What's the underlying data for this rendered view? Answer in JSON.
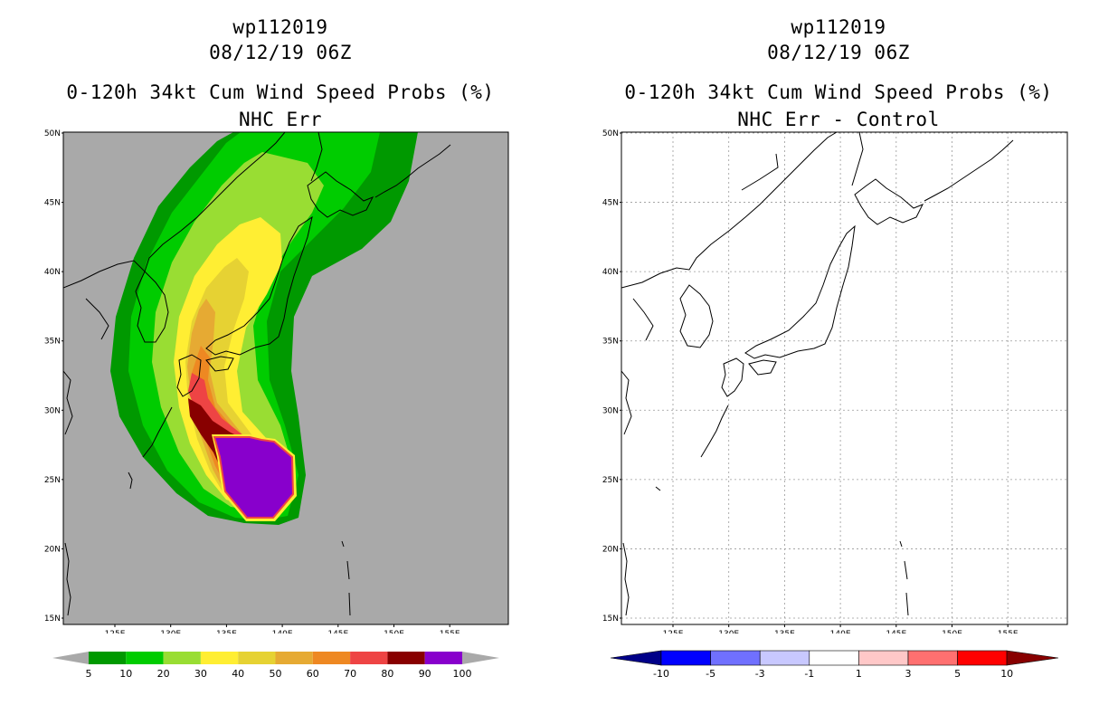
{
  "left": {
    "title_line1": "wp112019",
    "title_line2": "08/12/19 06Z",
    "title_line3": "0-120h 34kt Cum Wind Speed Probs (%)",
    "title_line4": "NHC Err"
  },
  "right": {
    "title_line1": "wp112019",
    "title_line2": "08/12/19 06Z",
    "title_line3": "0-120h 34kt Cum Wind Speed Probs (%)",
    "title_line4": "NHC Err - Control"
  },
  "map": {
    "lat_labels": [
      "50N",
      "45N",
      "40N",
      "35N",
      "30N",
      "25N",
      "20N",
      "15N"
    ],
    "lon_labels": [
      "125E",
      "130E",
      "135E",
      "140E",
      "145E",
      "150E",
      "155E"
    ],
    "ocean_color": "#a9a9a9",
    "coast_color": "#000000"
  },
  "legend_left": {
    "labels": [
      "5",
      "10",
      "20",
      "30",
      "40",
      "50",
      "60",
      "70",
      "80",
      "90",
      "100"
    ],
    "colors": [
      "#009900",
      "#00cc00",
      "#99dd33",
      "#ffee33",
      "#e6d233",
      "#e6aa33",
      "#ee8822",
      "#ee4444",
      "#880000",
      "#8800cc"
    ]
  },
  "legend_right": {
    "labels": [
      "-10",
      "-5",
      "-3",
      "-1",
      "1",
      "3",
      "5",
      "10"
    ],
    "colors": [
      "#0000ff",
      "#7070ff",
      "#c8c8ff",
      "#ffffff",
      "#ffc8c8",
      "#ff7070",
      "#ff0000"
    ],
    "end_low": "#000088",
    "end_high": "#880000"
  },
  "prob_bands": [
    {
      "level": "5",
      "color": "#009900"
    },
    {
      "level": "10",
      "color": "#00cc00"
    },
    {
      "level": "20",
      "color": "#99dd33"
    },
    {
      "level": "30",
      "color": "#ffee33"
    },
    {
      "level": "40",
      "color": "#e6d233"
    },
    {
      "level": "50",
      "color": "#e6aa33"
    },
    {
      "level": "60",
      "color": "#ee8822"
    },
    {
      "level": "70",
      "color": "#ee4444"
    },
    {
      "level": "80",
      "color": "#880000"
    },
    {
      "level": "90",
      "color": "#8800cc"
    }
  ]
}
